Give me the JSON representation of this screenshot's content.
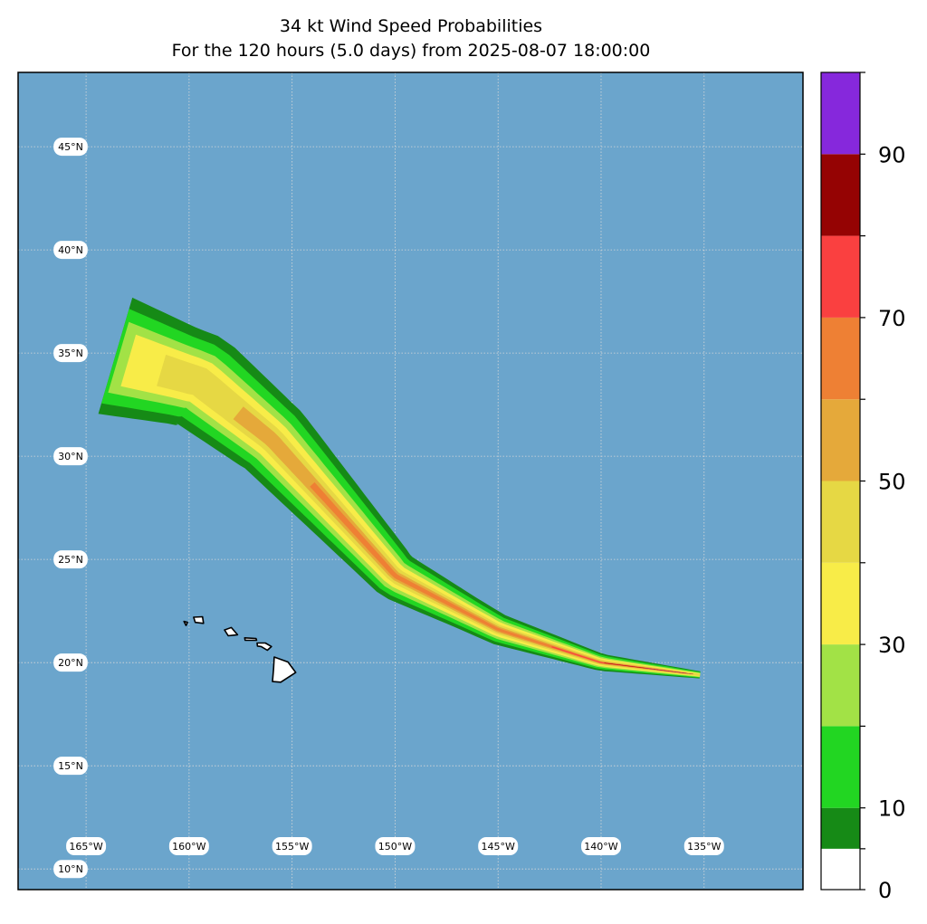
{
  "title": "34 kt Wind Speed Probabilities",
  "subtitle": "For the 120 hours (5.0 days) from 2025-08-07 18:00:00",
  "colors": {
    "ocean": "#6ba5cc",
    "land": "#ffffff",
    "coast": "#000000",
    "grid": "#d8d8d8",
    "frame": "#000000",
    "label_bg": "#ffffff"
  },
  "map": {
    "lon_min": -168.3,
    "lon_max": -130.2,
    "lat_min": 9.0,
    "lat_max": 48.6,
    "grid_lons": [
      -165,
      -160,
      -155,
      -150,
      -145,
      -140,
      -135
    ],
    "grid_lats": [
      10,
      15,
      20,
      25,
      30,
      35,
      40,
      45
    ],
    "lon_labels": [
      "165°W",
      "160°W",
      "155°W",
      "150°W",
      "145°W",
      "140°W",
      "135°W"
    ],
    "lat_labels": [
      "10°N",
      "15°N",
      "20°N",
      "25°N",
      "30°N",
      "35°N",
      "40°N",
      "45°N"
    ]
  },
  "colorbar": {
    "levels": [
      0,
      5,
      10,
      20,
      30,
      40,
      50,
      60,
      70,
      80,
      90,
      100
    ],
    "colors": [
      "#ffffff",
      "#168a16",
      "#22d622",
      "#a2e246",
      "#f8ec48",
      "#e6d844",
      "#e5a93a",
      "#ee8034",
      "#fa4040",
      "#950303",
      "#8628dc"
    ],
    "tick_labels": [
      "0",
      "10",
      "30",
      "50",
      "70",
      "90"
    ],
    "tick_values": [
      0,
      10,
      30,
      50,
      70,
      90
    ]
  },
  "probability_swath": {
    "unit": "%",
    "track_lonlat": [
      [
        -135.2,
        19.4
      ],
      [
        -140,
        20.0
      ],
      [
        -145,
        21.6
      ],
      [
        -150,
        24.2
      ],
      [
        -153,
        27.5
      ],
      [
        -156,
        30.8
      ],
      [
        -159.5,
        33.6
      ],
      [
        -163.6,
        34.8
      ]
    ],
    "bands": [
      {
        "min_pct": 5,
        "color": "#168a16"
      },
      {
        "min_pct": 10,
        "color": "#22d622"
      },
      {
        "min_pct": 20,
        "color": "#a2e246"
      },
      {
        "min_pct": 30,
        "color": "#f8ec48"
      },
      {
        "min_pct": 40,
        "color": "#e6d844"
      },
      {
        "min_pct": 50,
        "color": "#e5a93a"
      },
      {
        "min_pct": 60,
        "color": "#ee8034"
      },
      {
        "min_pct": 70,
        "color": "#fa4040"
      },
      {
        "min_pct": 80,
        "color": "#950303"
      },
      {
        "min_pct": 90,
        "color": "#8628dc"
      }
    ],
    "max_near_lonlat": [
      -136.6,
      19.4
    ]
  },
  "land_features": [
    {
      "name": "Hawaii (Big Island)"
    },
    {
      "name": "Maui"
    },
    {
      "name": "Molokai"
    },
    {
      "name": "Oahu"
    },
    {
      "name": "Kauai"
    },
    {
      "name": "Niihau"
    }
  ]
}
